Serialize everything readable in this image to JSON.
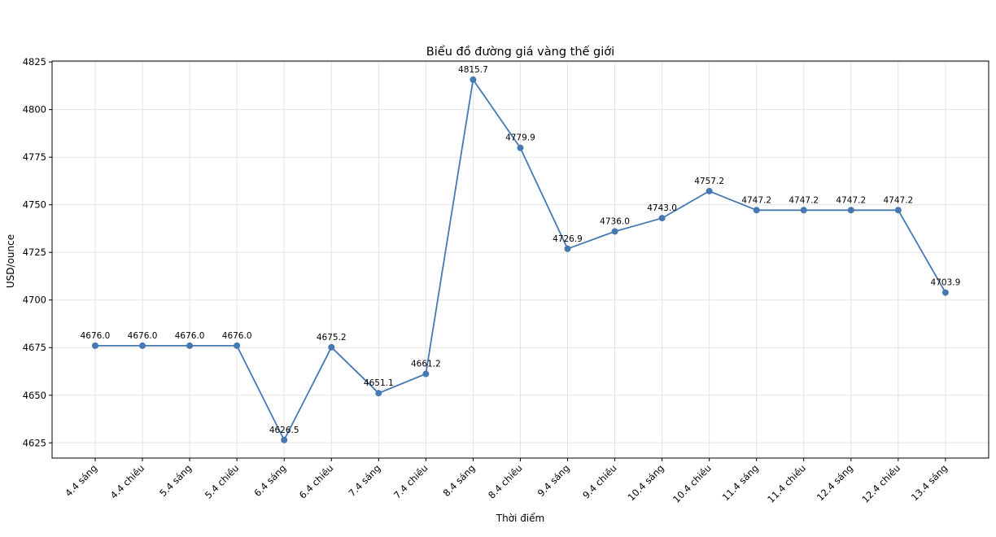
{
  "chart_data": {
    "type": "line",
    "title": "Biểu đồ đường giá vàng thế giới",
    "xlabel": "Thời điểm",
    "ylabel": "USD/ounce",
    "categories": [
      "4.4 sáng",
      "4.4 chiều",
      "5.4 sáng",
      "5.4 chiều",
      "6.4 sáng",
      "6.4 chiều",
      "7.4 sáng",
      "7.4 chiều",
      "8.4 sáng",
      "8.4 chiều",
      "9.4 sáng",
      "9.4 chiều",
      "10.4 sáng",
      "10.4 chiều",
      "11.4 sáng",
      "11.4 chiều",
      "12.4 sáng",
      "12.4 chiều",
      "13.4 sáng"
    ],
    "values": [
      4676.0,
      4676.0,
      4676.0,
      4676.0,
      4626.5,
      4675.2,
      4651.1,
      4661.2,
      4815.7,
      4779.9,
      4726.9,
      4736.0,
      4743.0,
      4757.2,
      4747.2,
      4747.2,
      4747.2,
      4747.2,
      4703.9
    ],
    "data_labels": [
      "4676.0",
      "4676.0",
      "4676.0",
      "4676.0",
      "4626.5",
      "4675.2",
      "4651.1",
      "4661.2",
      "4815.7",
      "4779.9",
      "4726.9",
      "4736.0",
      "4743.0",
      "4757.2",
      "4747.2",
      "4747.2",
      "4747.2",
      "4747.2",
      "4703.9"
    ],
    "yticks": [
      4625,
      4650,
      4675,
      4700,
      4725,
      4750,
      4775,
      4800,
      4825
    ],
    "ylim": [
      4617.0,
      4825.5
    ],
    "grid": true,
    "line_color": "#4679b2",
    "marker": "circle"
  }
}
